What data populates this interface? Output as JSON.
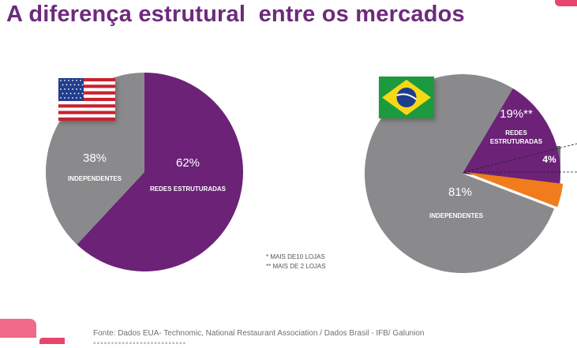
{
  "title": "A diferença estrutural  entre os mercados",
  "chart_data": [
    {
      "type": "pie",
      "flag": "usa-flag",
      "slices": [
        {
          "label": "REDES ESTRUTURADAS",
          "value": 62,
          "display": "62%",
          "color": "#6b2277"
        },
        {
          "label": "INDEPENDENTES",
          "value": 38,
          "display": "38%",
          "color": "#8a8a8c"
        }
      ]
    },
    {
      "type": "pie",
      "flag": "brazil-flag",
      "slices": [
        {
          "label": "REDES ESTRUTURADAS",
          "value": 19,
          "display": "19%**",
          "color": "#6b2277"
        },
        {
          "label": "",
          "value": 4,
          "display": "4%",
          "color": "#f07c1e"
        },
        {
          "label": "INDEPENDENTES",
          "value": 81,
          "display": "81%",
          "color": "#8a8a8c"
        }
      ]
    }
  ],
  "notes": [
    "* MAIS DE10 LOJAS",
    "** MAIS DE 2 LOJAS"
  ],
  "source": "Fonte: Dados EUA- Technomic, National Restaurant Association / Dados Brasil - IFB/ Galunion"
}
